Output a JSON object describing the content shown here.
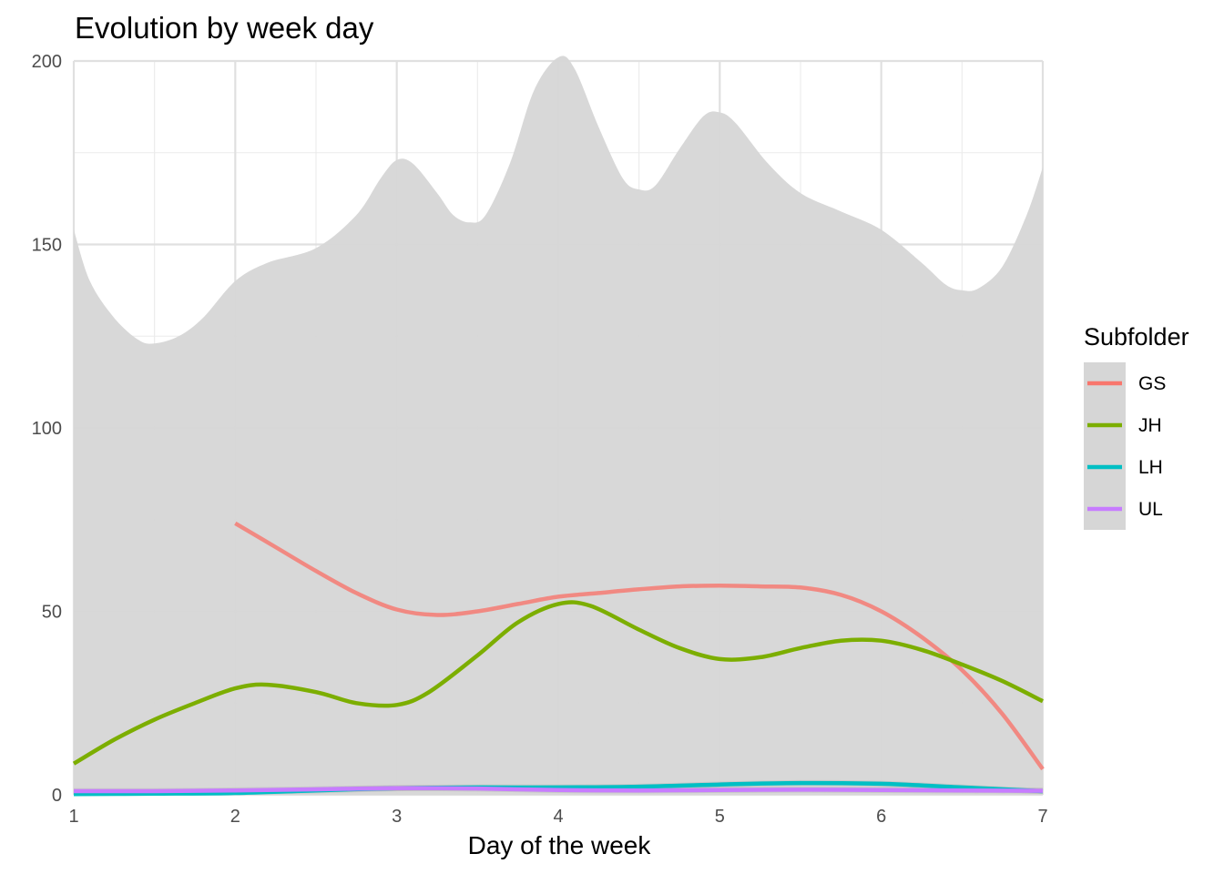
{
  "chart_data": {
    "type": "line",
    "title": "Evolution by week day",
    "xlabel": "Day of the week",
    "ylabel": "",
    "xlim": [
      1,
      7
    ],
    "ylim": [
      0,
      200
    ],
    "x_ticks": [
      1,
      2,
      3,
      4,
      5,
      6,
      7
    ],
    "y_ticks": [
      0,
      50,
      100,
      150,
      200
    ],
    "grid": true,
    "legend": {
      "title": "Subfolder",
      "position": "right"
    },
    "series": [
      {
        "name": "GS",
        "color": "#F8766D",
        "points": [
          [
            2,
            74
          ],
          [
            2.25,
            67.5
          ],
          [
            2.5,
            61
          ],
          [
            2.75,
            55
          ],
          [
            3,
            50.5
          ],
          [
            3.25,
            49
          ],
          [
            3.5,
            50
          ],
          [
            3.75,
            52
          ],
          [
            4,
            54
          ],
          [
            4.25,
            55
          ],
          [
            4.5,
            56
          ],
          [
            4.75,
            56.8
          ],
          [
            5,
            57
          ],
          [
            5.25,
            56.8
          ],
          [
            5.5,
            56.5
          ],
          [
            5.75,
            54.5
          ],
          [
            6,
            50
          ],
          [
            6.25,
            43
          ],
          [
            6.5,
            34
          ],
          [
            6.75,
            22
          ],
          [
            7,
            7
          ]
        ],
        "band": [
          [
            2,
            2.5,
            2.5
          ],
          [
            7,
            2.5,
            2.5
          ]
        ]
      },
      {
        "name": "JH",
        "color": "#7CAE00",
        "points": [
          [
            1,
            8.5
          ],
          [
            1.25,
            15
          ],
          [
            1.5,
            20.5
          ],
          [
            1.75,
            25
          ],
          [
            2,
            29
          ],
          [
            2.2,
            30
          ],
          [
            2.5,
            28
          ],
          [
            2.75,
            25
          ],
          [
            3,
            24.5
          ],
          [
            3.2,
            28
          ],
          [
            3.5,
            38
          ],
          [
            3.75,
            47
          ],
          [
            4,
            52
          ],
          [
            4.2,
            51.5
          ],
          [
            4.5,
            45
          ],
          [
            4.75,
            40
          ],
          [
            5,
            37
          ],
          [
            5.25,
            37.5
          ],
          [
            5.5,
            40
          ],
          [
            5.75,
            42
          ],
          [
            6,
            42
          ],
          [
            6.25,
            39.5
          ],
          [
            6.5,
            35.5
          ],
          [
            6.75,
            31
          ],
          [
            7,
            25.5
          ]
        ],
        "band": [
          [
            1,
            4.5,
            4.5
          ],
          [
            7,
            4.5,
            4.5
          ]
        ]
      },
      {
        "name": "LH",
        "color": "#00BFC4",
        "points": [
          [
            1,
            0.2
          ],
          [
            1.5,
            0.3
          ],
          [
            2,
            0.5
          ],
          [
            2.5,
            1.2
          ],
          [
            3,
            1.8
          ],
          [
            3.5,
            2
          ],
          [
            4,
            2
          ],
          [
            4.5,
            2.2
          ],
          [
            5,
            2.8
          ],
          [
            5.5,
            3.2
          ],
          [
            6,
            3
          ],
          [
            6.5,
            2
          ],
          [
            7,
            1
          ]
        ],
        "band": [
          [
            1,
            0.8,
            0.8
          ],
          [
            7,
            0.8,
            0.8
          ]
        ]
      },
      {
        "name": "UL",
        "color": "#C77CFF",
        "points": [
          [
            1,
            1
          ],
          [
            1.5,
            1
          ],
          [
            2,
            1.2
          ],
          [
            2.5,
            1.5
          ],
          [
            3,
            1.8
          ],
          [
            3.5,
            1.7
          ],
          [
            4,
            1.3
          ],
          [
            4.5,
            1.2
          ],
          [
            5,
            1.3
          ],
          [
            5.5,
            1.4
          ],
          [
            6,
            1.3
          ],
          [
            6.5,
            1.2
          ],
          [
            7,
            1.1
          ]
        ],
        "band": [
          [
            1,
            0.8,
            0.8
          ],
          [
            7,
            0.8,
            0.8
          ]
        ]
      }
    ],
    "confidence_envelope": {
      "color": "#d6d6d6",
      "upper": [
        [
          1,
          154
        ],
        [
          1.1,
          140
        ],
        [
          1.25,
          130
        ],
        [
          1.4,
          124
        ],
        [
          1.5,
          123
        ],
        [
          1.65,
          125
        ],
        [
          1.8,
          130
        ],
        [
          2,
          140
        ],
        [
          2.2,
          145
        ],
        [
          2.5,
          149
        ],
        [
          2.75,
          158
        ],
        [
          2.9,
          168
        ],
        [
          3,
          173
        ],
        [
          3.1,
          172
        ],
        [
          3.25,
          164
        ],
        [
          3.35,
          158
        ],
        [
          3.45,
          156
        ],
        [
          3.55,
          158
        ],
        [
          3.7,
          172
        ],
        [
          3.85,
          192
        ],
        [
          4,
          201
        ],
        [
          4.1,
          198
        ],
        [
          4.25,
          182
        ],
        [
          4.4,
          168
        ],
        [
          4.5,
          165
        ],
        [
          4.6,
          166
        ],
        [
          4.75,
          176
        ],
        [
          4.9,
          185
        ],
        [
          5,
          186
        ],
        [
          5.1,
          183
        ],
        [
          5.3,
          172
        ],
        [
          5.5,
          164
        ],
        [
          5.75,
          159
        ],
        [
          6,
          154
        ],
        [
          6.25,
          145
        ],
        [
          6.4,
          139
        ],
        [
          6.5,
          137.5
        ],
        [
          6.6,
          138
        ],
        [
          6.75,
          144
        ],
        [
          6.9,
          158
        ],
        [
          7,
          171
        ]
      ]
    }
  }
}
